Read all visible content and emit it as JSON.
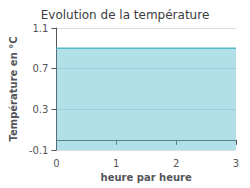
{
  "chart_data": {
    "type": "area",
    "title": "Evolution de la température",
    "xlabel": "heure par heure",
    "ylabel": "Température en °C",
    "x": [
      0,
      3
    ],
    "series": [
      {
        "name": "Température",
        "color": "#55bbcc",
        "values": [
          0.9,
          0.9
        ]
      }
    ],
    "xlim": [
      0,
      3
    ],
    "xticks": [
      0,
      1,
      2,
      3
    ],
    "ylim": [
      -0.1,
      1.1
    ],
    "yticks": [
      -0.1,
      0.3,
      0.7,
      1.1
    ],
    "grid": true
  }
}
